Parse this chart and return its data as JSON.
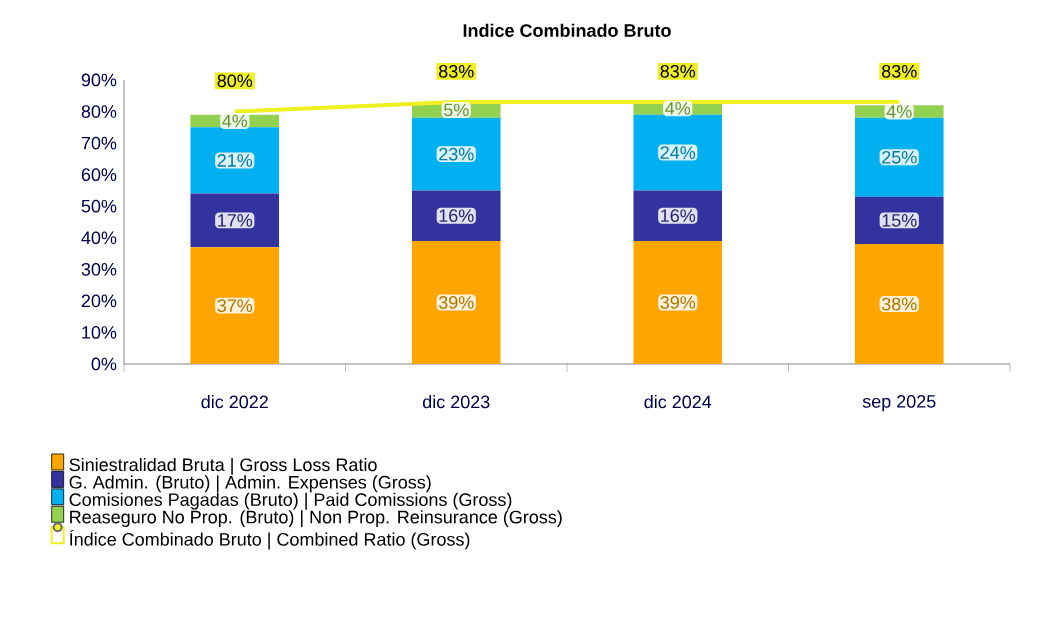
{
  "chart_data": {
    "type": "bar",
    "stacked": true,
    "title": "**Indice Combinado Bruto**",
    "categories": [
      "dic 2022",
      "dic 2023",
      "dic 2024",
      "sep 2025"
    ],
    "ylim": [
      0,
      90
    ],
    "yticks": [
      {
        "value": 0,
        "label": "0%"
      },
      {
        "value": 10,
        "label": "10%"
      },
      {
        "value": 20,
        "label": "20%"
      },
      {
        "value": 30,
        "label": "30%"
      },
      {
        "value": 40,
        "label": "40%"
      },
      {
        "value": 50,
        "label": "50%"
      },
      {
        "value": 60,
        "label": "60%"
      },
      {
        "value": 70,
        "label": "70%"
      },
      {
        "value": 80,
        "label": "80%"
      },
      {
        "value": 90,
        "label": "90%"
      }
    ],
    "legend": "bottom",
    "grid": false,
    "series": [
      {
        "name": "Siniestralidad Bruta | Gross Loss Ratio",
        "color": "#ffa500",
        "values": [
          37,
          39,
          39,
          38
        ],
        "value_labels": [
          "37%",
          "39%",
          "39%",
          "38%"
        ]
      },
      {
        "name": "G. Admin. (Bruto) | Admin. Expenses (Gross)",
        "color": "#3333a0",
        "values": [
          17,
          16,
          16,
          15
        ],
        "value_labels": [
          "17%",
          "16%",
          "16%",
          "15%"
        ]
      },
      {
        "name": "Comisiones Pagadas (Bruto) | Paid Comissions (Gross)",
        "color": "#00b0f0",
        "values": [
          21,
          23,
          24,
          25
        ],
        "value_labels": [
          "21%",
          "23%",
          "24%",
          "25%"
        ]
      },
      {
        "name": "Reaseguro No Prop. (Bruto) | Non Prop. Reinsurance (Gross)",
        "color": "#92d050",
        "values": [
          4,
          5,
          4,
          4
        ],
        "value_labels": [
          "4%",
          "5%",
          "4%",
          "4%"
        ]
      },
      {
        "name": "Índice Combinado Bruto | Combined Ratio (Gross)",
        "type": "line",
        "color": "#f0f020",
        "values": [
          80,
          83,
          83,
          83
        ],
        "value_labels": [
          "80%",
          "83%",
          "83%",
          "83%"
        ]
      }
    ]
  }
}
